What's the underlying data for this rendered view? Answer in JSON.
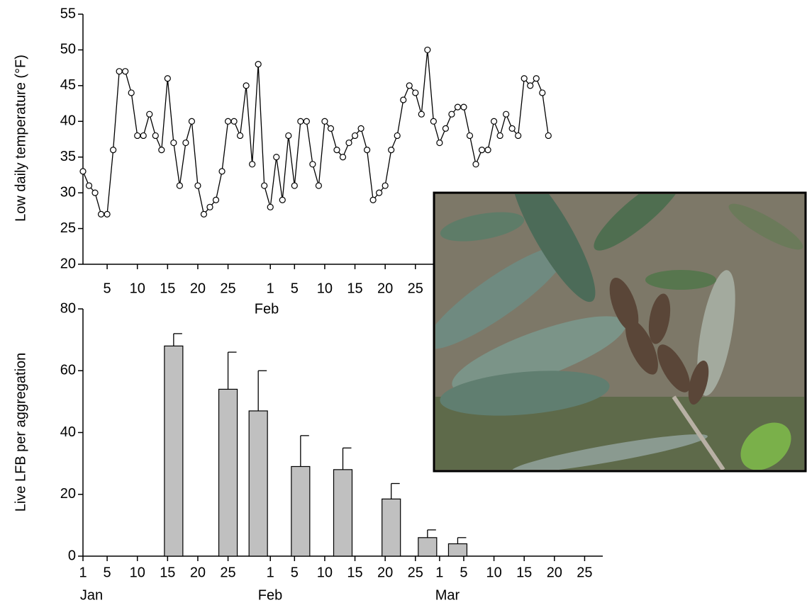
{
  "chart_data": [
    {
      "type": "line",
      "y_label": "Low daily temperature (°F)",
      "x": [
        1,
        2,
        3,
        4,
        5,
        6,
        7,
        8,
        9,
        10,
        11,
        12,
        13,
        14,
        15,
        16,
        17,
        18,
        19,
        20,
        21,
        22,
        23,
        24,
        25,
        26,
        27,
        28,
        29,
        30,
        31,
        32,
        33,
        34,
        35,
        36,
        37,
        38,
        39,
        40,
        41,
        42,
        43,
        44,
        45,
        46,
        47,
        48,
        49,
        50,
        51,
        52,
        53,
        54,
        55,
        56,
        57,
        58,
        59,
        60,
        61,
        62,
        63,
        64,
        65,
        66,
        67,
        68,
        69,
        70,
        71,
        72,
        73,
        74,
        75,
        76,
        77,
        78
      ],
      "values": [
        33,
        31,
        30,
        27,
        27,
        36,
        47,
        47,
        44,
        38,
        38,
        41,
        38,
        36,
        46,
        37,
        31,
        37,
        40,
        31,
        27,
        28,
        29,
        33,
        40,
        40,
        38,
        45,
        34,
        48,
        31,
        28,
        35,
        29,
        38,
        31,
        40,
        40,
        34,
        31,
        40,
        39,
        36,
        35,
        37,
        38,
        39,
        36,
        29,
        30,
        31,
        36,
        38,
        43,
        45,
        44,
        41,
        50,
        40,
        37,
        39,
        41,
        42,
        42,
        38,
        34,
        36,
        36,
        40,
        38,
        41,
        39,
        38,
        46,
        45,
        46,
        44,
        38
      ],
      "color": "#000000",
      "xlim": [
        1,
        87
      ],
      "ylim": [
        20,
        55
      ],
      "yticks": [
        20,
        25,
        30,
        35,
        40,
        45,
        50,
        55
      ],
      "xticks": [
        5,
        10,
        15,
        20,
        25,
        {
          "value": 32,
          "label": "1"
        },
        {
          "value": 36,
          "label": "5"
        },
        {
          "value": 41,
          "label": "10"
        },
        {
          "value": 46,
          "label": "15"
        },
        {
          "value": 51,
          "label": "20"
        },
        {
          "value": 56,
          "label": "25"
        }
      ],
      "month_labels": [
        "Feb"
      ]
    },
    {
      "type": "bar",
      "y_label": "Live LFB per aggregation",
      "x": [
        16,
        25,
        30,
        37,
        44,
        52,
        58,
        63
      ],
      "values": [
        68,
        54,
        47,
        29,
        28,
        18.5,
        6,
        4
      ],
      "errors": [
        4,
        12,
        13,
        10,
        7,
        5,
        2.5,
        2
      ],
      "color": "#c0c0c0",
      "xlim": [
        1,
        87
      ],
      "ylim": [
        0,
        80
      ],
      "yticks": [
        0,
        20,
        40,
        60,
        80
      ],
      "xticks": [
        1,
        5,
        10,
        15,
        20,
        25,
        {
          "value": 32,
          "label": "1"
        },
        {
          "value": 36,
          "label": "5"
        },
        {
          "value": 41,
          "label": "10"
        },
        {
          "value": 46,
          "label": "15"
        },
        {
          "value": 51,
          "label": "20"
        },
        {
          "value": 56,
          "label": "25"
        },
        {
          "value": 60,
          "label": "1"
        },
        {
          "value": 64,
          "label": "5"
        },
        {
          "value": 69,
          "label": "10"
        },
        {
          "value": 74,
          "label": "15"
        },
        {
          "value": 79,
          "label": "20"
        },
        {
          "value": 84,
          "label": "25"
        }
      ],
      "month_labels": [
        "Jan",
        "Feb",
        "Mar"
      ]
    }
  ]
}
